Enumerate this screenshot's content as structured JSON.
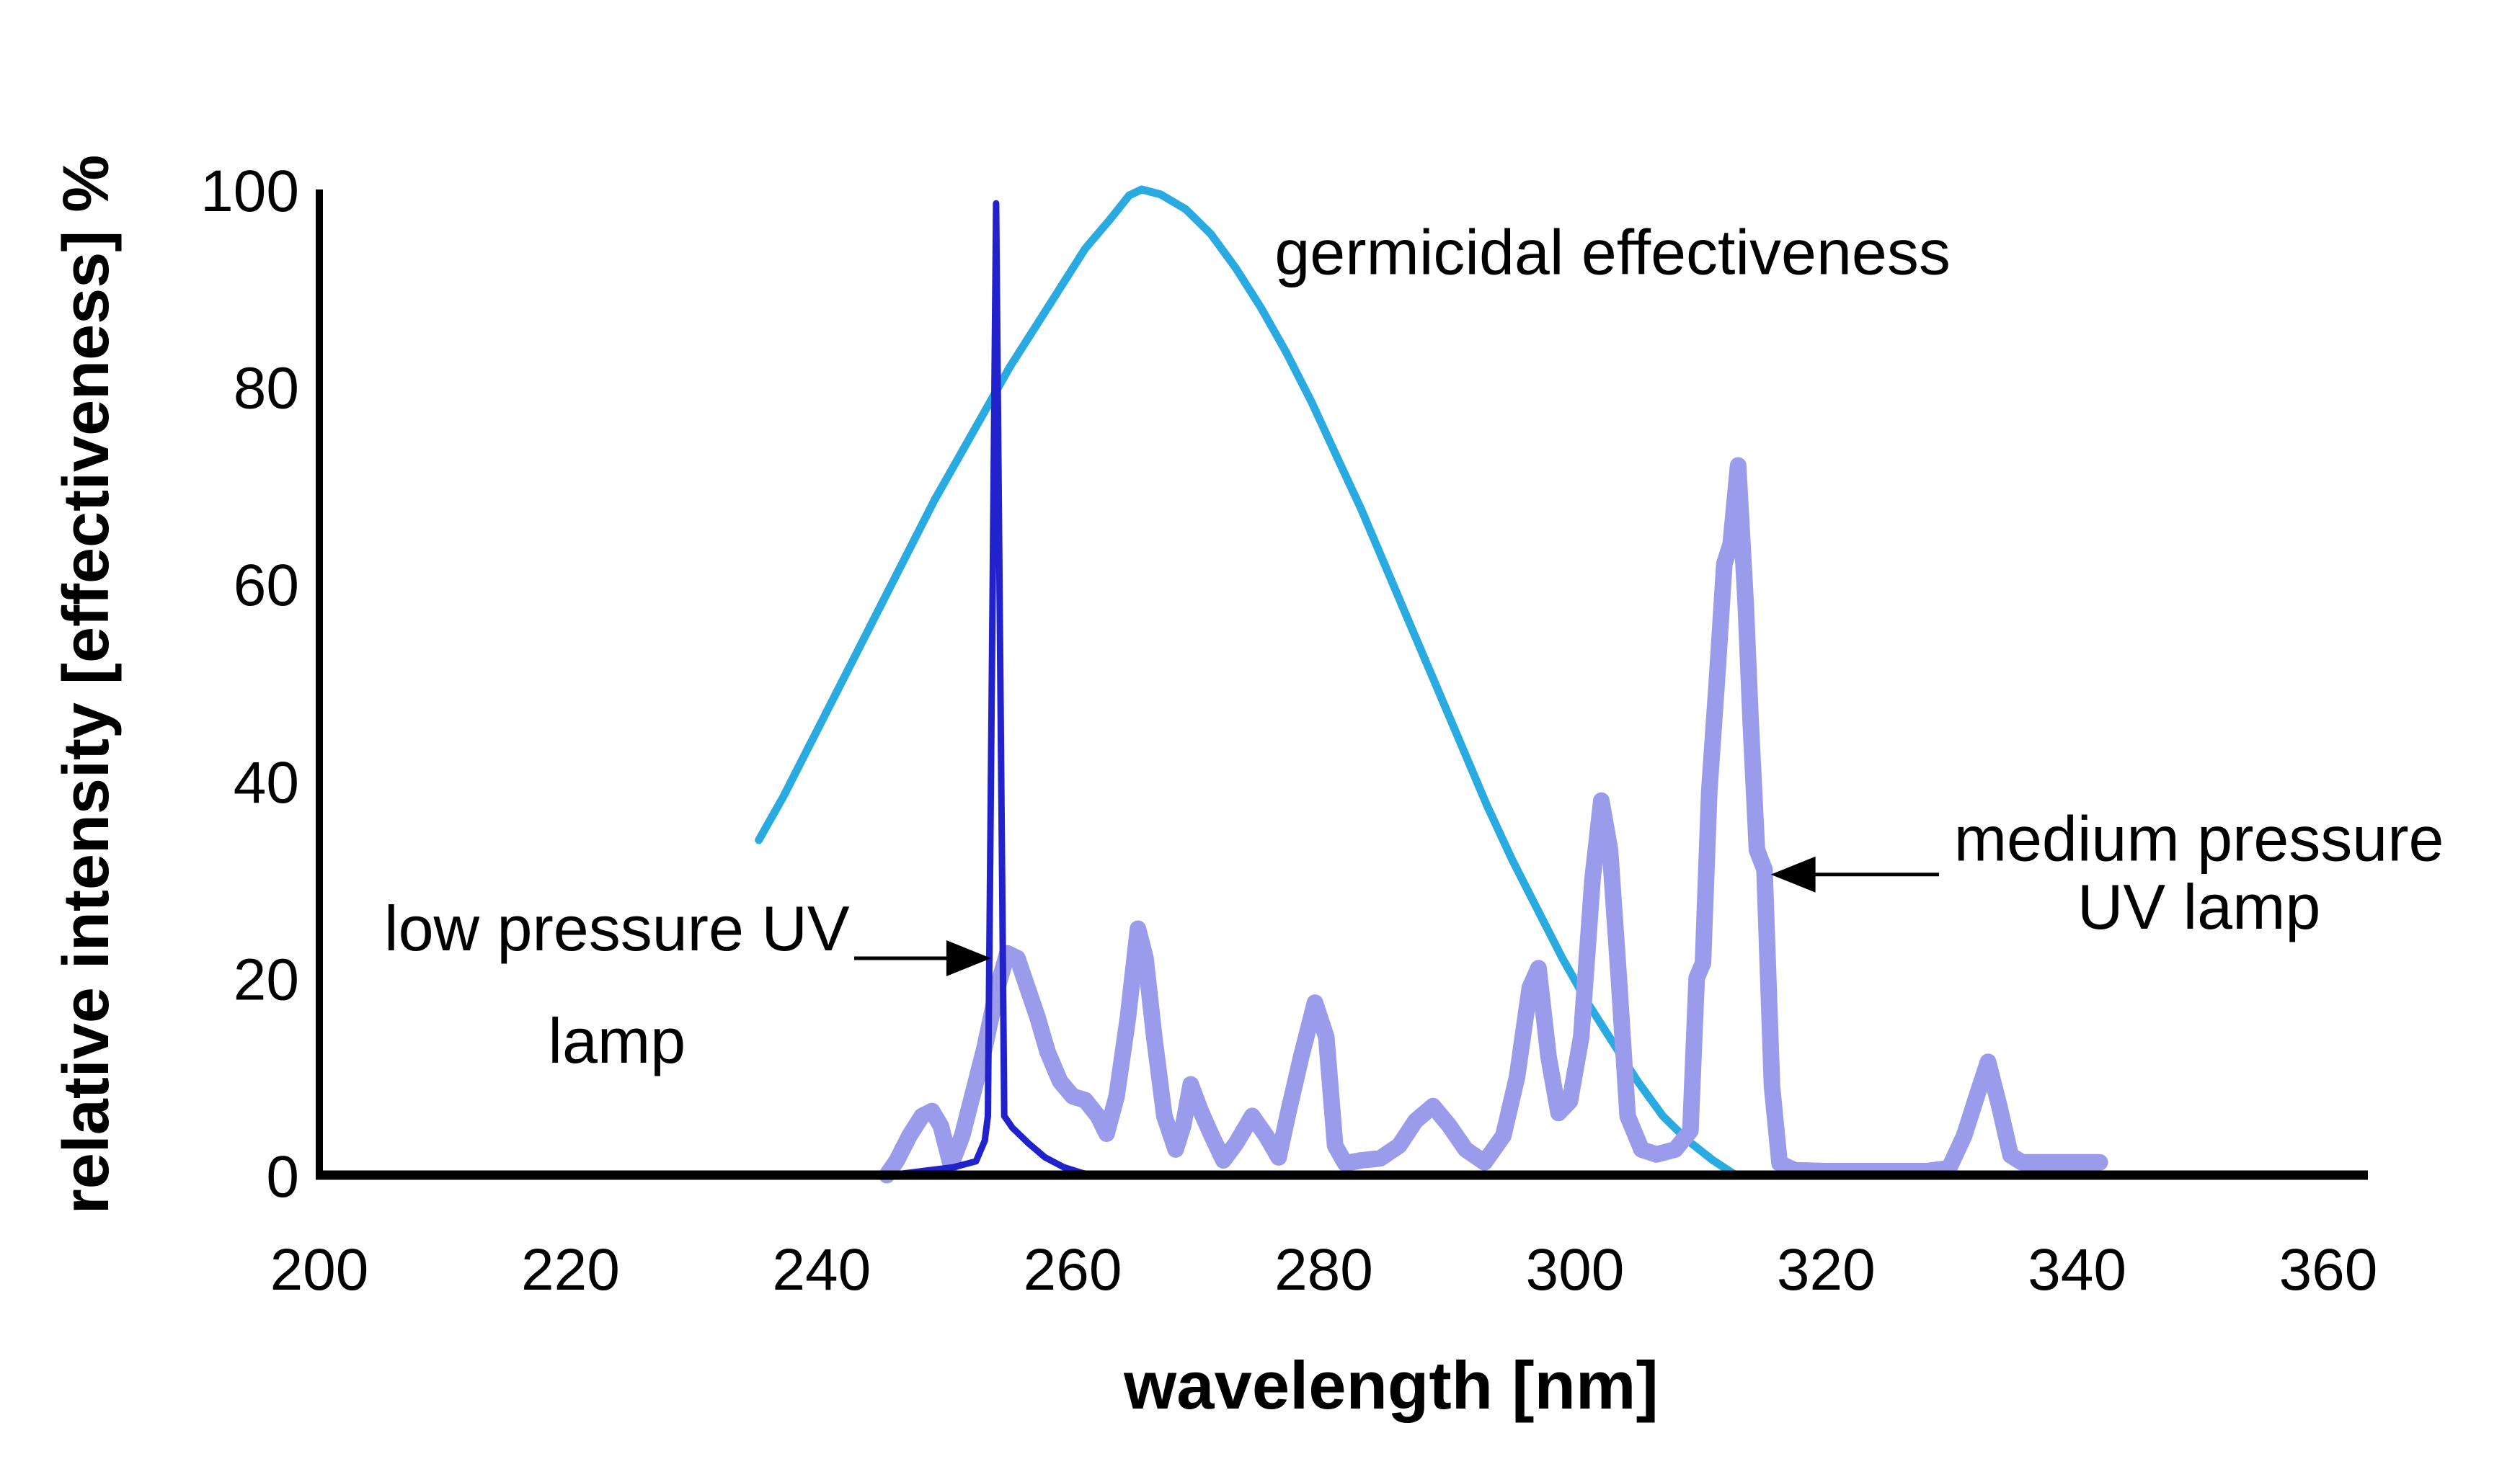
{
  "chart_data": {
    "type": "line",
    "title": "",
    "xlabel": "wavelength [nm]",
    "ylabel": "relative intensity [effectiveness] %",
    "xlim": [
      200,
      360
    ],
    "ylim": [
      0,
      100
    ],
    "x_ticks": [
      200,
      220,
      240,
      260,
      280,
      300,
      320,
      340,
      360
    ],
    "y_ticks": [
      0,
      20,
      40,
      60,
      80,
      100
    ],
    "grid": false,
    "legend_position": "inline-annotations",
    "axis_color": "#000000",
    "series": [
      {
        "name": "germicidal effectiveness",
        "color": "#29ABE2",
        "stroke_width": 11,
        "points": [
          [
            235,
            34
          ],
          [
            237,
            38.5
          ],
          [
            239,
            43.5
          ],
          [
            241,
            48.5
          ],
          [
            243,
            53.5
          ],
          [
            245,
            58.5
          ],
          [
            247,
            63.5
          ],
          [
            249,
            68.5
          ],
          [
            251,
            73
          ],
          [
            253,
            77.5
          ],
          [
            255,
            82
          ],
          [
            257,
            86
          ],
          [
            259,
            90
          ],
          [
            261,
            94
          ],
          [
            263,
            97
          ],
          [
            264.5,
            99.4
          ],
          [
            265.5,
            100
          ],
          [
            267,
            99.5
          ],
          [
            269,
            98
          ],
          [
            271,
            95.5
          ],
          [
            273,
            92
          ],
          [
            275,
            88
          ],
          [
            277,
            83.5
          ],
          [
            279,
            78.5
          ],
          [
            281,
            73
          ],
          [
            283,
            67.5
          ],
          [
            285,
            61.5
          ],
          [
            287,
            55.5
          ],
          [
            289,
            49.5
          ],
          [
            291,
            43.5
          ],
          [
            293,
            37.5
          ],
          [
            295,
            32
          ],
          [
            297,
            27
          ],
          [
            299,
            22
          ],
          [
            301,
            17.5
          ],
          [
            303,
            13.5
          ],
          [
            305,
            9.5
          ],
          [
            307,
            6
          ],
          [
            309,
            3.5
          ],
          [
            311,
            1.5
          ],
          [
            312.8,
            0
          ]
        ]
      },
      {
        "name": "medium pressure UV lamp",
        "color": "#9B9BEC",
        "stroke_width": 23,
        "points": [
          [
            245.2,
            0
          ],
          [
            246,
            1.5
          ],
          [
            247,
            4
          ],
          [
            248,
            6
          ],
          [
            248.8,
            6.5
          ],
          [
            249.5,
            5
          ],
          [
            250.3,
            1
          ],
          [
            251.2,
            4
          ],
          [
            252,
            8
          ],
          [
            253,
            13
          ],
          [
            254,
            19
          ],
          [
            254.8,
            22.5
          ],
          [
            255.6,
            22
          ],
          [
            256.4,
            19
          ],
          [
            257.2,
            16
          ],
          [
            258,
            12.5
          ],
          [
            259,
            9.5
          ],
          [
            260,
            8
          ],
          [
            261,
            7.6
          ],
          [
            262,
            6
          ],
          [
            262.7,
            4.2
          ],
          [
            263.5,
            8
          ],
          [
            264.4,
            16
          ],
          [
            265.2,
            25
          ],
          [
            265.8,
            22
          ],
          [
            266.5,
            14
          ],
          [
            267.3,
            6
          ],
          [
            268.2,
            2.6
          ],
          [
            268.8,
            5
          ],
          [
            269.4,
            9.2
          ],
          [
            270.2,
            6.5
          ],
          [
            271,
            4.2
          ],
          [
            272,
            1.5
          ],
          [
            273,
            3.2
          ],
          [
            274.3,
            6
          ],
          [
            275.4,
            4
          ],
          [
            276.4,
            1.8
          ],
          [
            277.2,
            6.5
          ],
          [
            278.2,
            12
          ],
          [
            279.3,
            17.5
          ],
          [
            280.2,
            14
          ],
          [
            280.9,
            3
          ],
          [
            281.7,
            1.2
          ],
          [
            283,
            1.5
          ],
          [
            284.5,
            1.7
          ],
          [
            286,
            3
          ],
          [
            287.3,
            5.5
          ],
          [
            288.7,
            7
          ],
          [
            290,
            5
          ],
          [
            291.3,
            2.6
          ],
          [
            292.8,
            1.3
          ],
          [
            294.3,
            4
          ],
          [
            295.4,
            10
          ],
          [
            296.4,
            19
          ],
          [
            297.1,
            21
          ],
          [
            297.9,
            12
          ],
          [
            298.7,
            6.3
          ],
          [
            299.6,
            7.5
          ],
          [
            300.5,
            14
          ],
          [
            301.4,
            30
          ],
          [
            302.1,
            38
          ],
          [
            302.8,
            33
          ],
          [
            303.5,
            20
          ],
          [
            304.2,
            6
          ],
          [
            305.3,
            2.6
          ],
          [
            306.5,
            2.1
          ],
          [
            308,
            2.6
          ],
          [
            309.2,
            4.5
          ],
          [
            309.7,
            20
          ],
          [
            310.2,
            21.5
          ],
          [
            310.7,
            39
          ],
          [
            311.3,
            50
          ],
          [
            311.9,
            62
          ],
          [
            312.4,
            64
          ],
          [
            313,
            72
          ],
          [
            313.6,
            58
          ],
          [
            314,
            46
          ],
          [
            314.5,
            33
          ],
          [
            315.1,
            31
          ],
          [
            315.7,
            9
          ],
          [
            316.3,
            1.2
          ],
          [
            317.5,
            0.5
          ],
          [
            320,
            0.4
          ],
          [
            324,
            0.4
          ],
          [
            328,
            0.4
          ],
          [
            329.8,
            0.7
          ],
          [
            331,
            4
          ],
          [
            332,
            8
          ],
          [
            332.9,
            11.5
          ],
          [
            333.8,
            7
          ],
          [
            334.7,
            2
          ],
          [
            335.6,
            1.3
          ],
          [
            337.5,
            1.3
          ],
          [
            339.5,
            1.3
          ],
          [
            341.8,
            1.3
          ]
        ]
      },
      {
        "name": "low pressure UV lamp",
        "color": "#2222CC",
        "stroke_width": 9,
        "points": [
          [
            245.5,
            0
          ],
          [
            248,
            0.4
          ],
          [
            250.5,
            0.8
          ],
          [
            252.3,
            1.4
          ],
          [
            253,
            3.5
          ],
          [
            253.25,
            6
          ],
          [
            253.9,
            98.6
          ],
          [
            254.55,
            6
          ],
          [
            255.2,
            4.8
          ],
          [
            256.5,
            3.2
          ],
          [
            257.8,
            1.8
          ],
          [
            259.3,
            0.8
          ],
          [
            260.8,
            0.2
          ],
          [
            261.8,
            0
          ]
        ]
      }
    ],
    "annotations": [
      {
        "id": "germicidal-effectiveness-label",
        "lines": [
          "germicidal effectiveness"
        ],
        "x_nm": 303,
        "y_pct": [
          93.6
        ],
        "arrow": null
      },
      {
        "id": "low-pressure-uv-lamp-label",
        "lines": [
          "low pressure UV",
          "lamp"
        ],
        "x_nm": 223.7,
        "y_pct": [
          25.0,
          13.6
        ],
        "arrow": {
          "from": [
            242.6,
            22.0
          ],
          "to": [
            253.5,
            22.0
          ]
        }
      },
      {
        "id": "medium-pressure-uv-lamp-label",
        "lines": [
          "medium pressure",
          "UV lamp"
        ],
        "x_nm": 349.7,
        "y_pct": [
          34.1,
          27.2
        ],
        "arrow": {
          "from": [
            329.0,
            30.5
          ],
          "to": [
            315.6,
            30.5
          ]
        }
      }
    ]
  }
}
